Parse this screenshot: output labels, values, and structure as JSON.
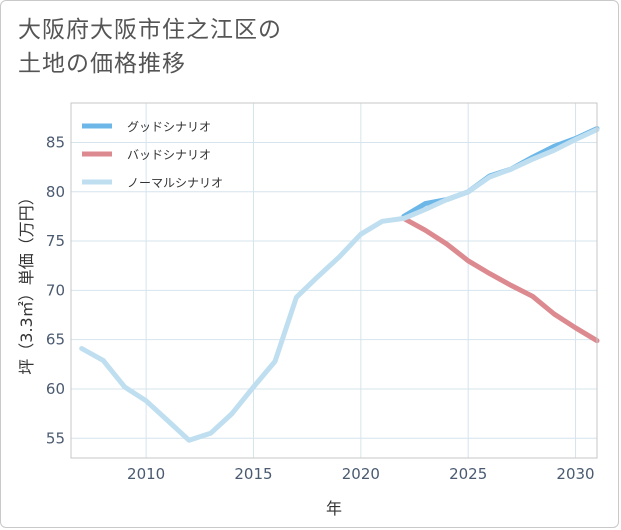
{
  "title_lines": [
    "大阪府大阪市住之江区の",
    "土地の価格推移"
  ],
  "chart_data": {
    "type": "line",
    "title": "大阪府大阪市住之江区の土地の価格推移",
    "xlabel": "年",
    "ylabel": "坪（3.3㎡）単価（万円）",
    "xlim": [
      2006.5,
      2031
    ],
    "ylim": [
      53,
      89
    ],
    "xticks": [
      2010,
      2015,
      2020,
      2025,
      2030
    ],
    "yticks": [
      55,
      60,
      65,
      70,
      75,
      80,
      85
    ],
    "grid": true,
    "legend_position": "top-left",
    "series": [
      {
        "name": "グッドシナリオ",
        "color": "#6cb7e8",
        "x": [
          2022,
          2023,
          2024,
          2025,
          2026,
          2027,
          2028,
          2029,
          2030,
          2031
        ],
        "y": [
          77.5,
          78.8,
          79.2,
          80.0,
          81.6,
          82.3,
          83.5,
          84.6,
          85.4,
          86.4
        ]
      },
      {
        "name": "バッドシナリオ",
        "color": "#dc8a90",
        "x": [
          2022,
          2023,
          2024,
          2025,
          2026,
          2027,
          2028,
          2029,
          2030,
          2031
        ],
        "y": [
          77.3,
          76.1,
          74.7,
          73.0,
          71.7,
          70.5,
          69.4,
          67.6,
          66.2,
          64.9
        ]
      },
      {
        "name": "ノーマルシナリオ",
        "color": "#bfdff0",
        "x": [
          2007,
          2008,
          2009,
          2010,
          2011,
          2012,
          2013,
          2014,
          2015,
          2016,
          2017,
          2018,
          2019,
          2020,
          2021,
          2022,
          2023,
          2024,
          2025,
          2026,
          2027,
          2028,
          2029,
          2030,
          2031
        ],
        "y": [
          64.1,
          62.9,
          60.2,
          58.8,
          56.8,
          54.8,
          55.5,
          57.5,
          60.2,
          62.8,
          69.3,
          71.4,
          73.4,
          75.7,
          77.0,
          77.3,
          78.2,
          79.2,
          80.0,
          81.5,
          82.3,
          83.3,
          84.2,
          85.3,
          86.3
        ]
      }
    ]
  }
}
